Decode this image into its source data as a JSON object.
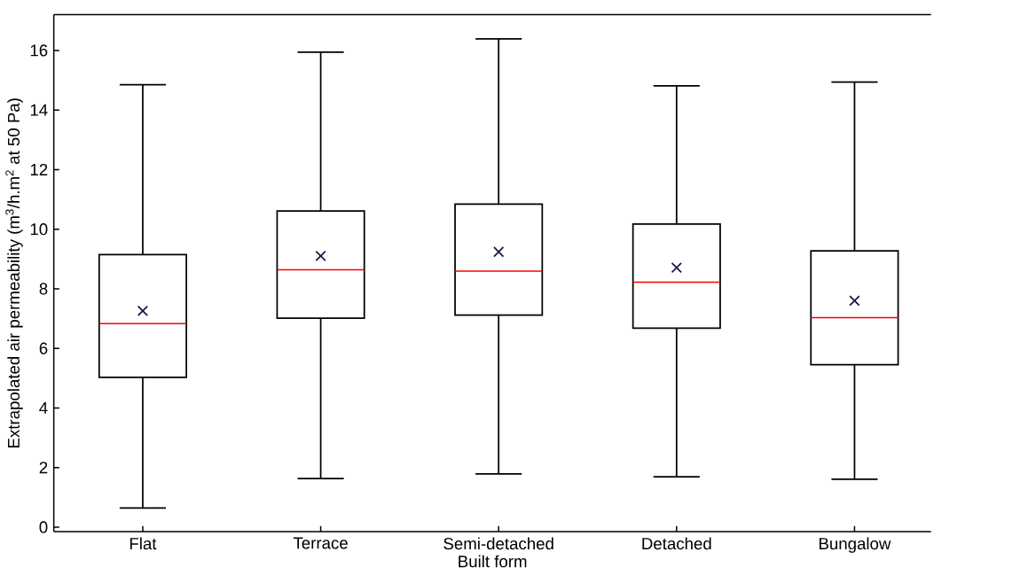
{
  "chart_data": {
    "type": "box",
    "xlabel": "Built form",
    "ylabel": "Extrapolated air permeability (m$^{3}$/h.m$^{2}$ at 50 Pa)",
    "categories": [
      "Flat",
      "Terrace",
      "Semi-detached",
      "Detached",
      "Bungalow"
    ],
    "color": "#000000",
    "boxes": [
      {
        "low": 0.64,
        "q1": 5.03,
        "median": 6.83,
        "q3": 9.15,
        "high": 14.85,
        "mean": 7.26
      },
      {
        "low": 1.63,
        "q1": 7.01,
        "median": 8.64,
        "q3": 10.61,
        "high": 15.94,
        "mean": 9.1
      },
      {
        "low": 1.79,
        "q1": 7.12,
        "median": 8.59,
        "q3": 10.84,
        "high": 16.39,
        "mean": 9.24
      },
      {
        "low": 1.69,
        "q1": 6.68,
        "median": 8.22,
        "q3": 10.17,
        "high": 14.81,
        "mean": 8.71
      },
      {
        "low": 1.61,
        "q1": 5.45,
        "median": 7.03,
        "q3": 9.27,
        "high": 14.94,
        "mean": 7.6
      }
    ],
    "ylim": [
      -0.15,
      17.2
    ],
    "yticks": [
      0,
      2,
      4,
      6,
      8,
      10,
      12,
      14,
      16
    ],
    "grid": false
  }
}
